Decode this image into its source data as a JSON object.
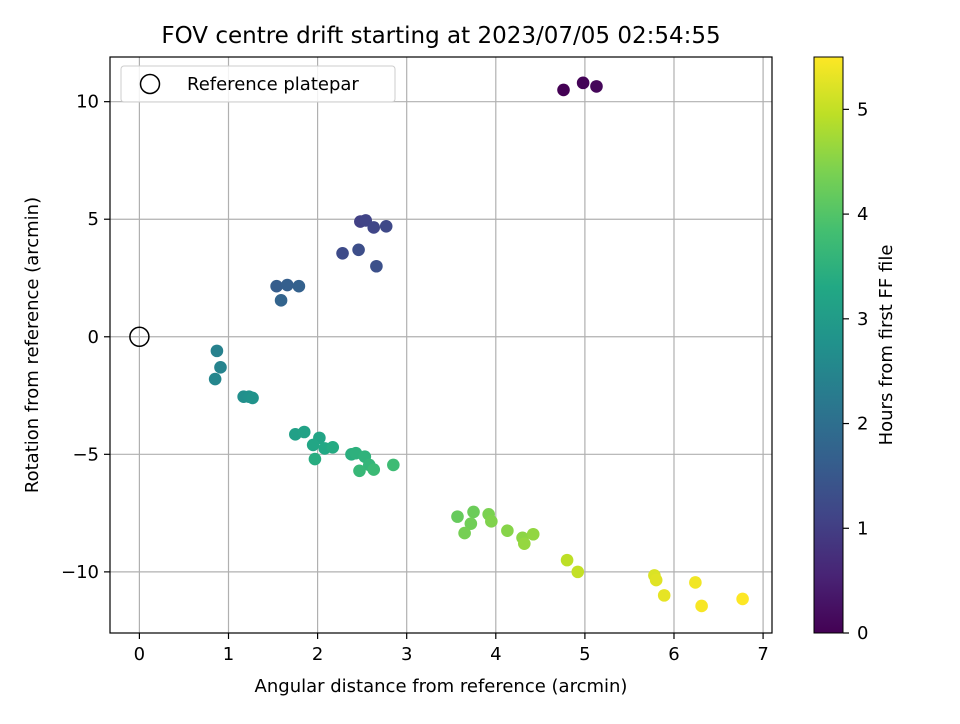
{
  "chart_data": {
    "type": "scatter",
    "title": "FOV centre drift starting at 2023/07/05 02:54:55",
    "xlabel": "Angular distance from reference (arcmin)",
    "ylabel": "Rotation from reference (arcmin)",
    "xlim": [
      -0.33,
      7.1
    ],
    "ylim": [
      -12.6,
      11.9
    ],
    "xticks": [
      0,
      1,
      2,
      3,
      4,
      5,
      6,
      7
    ],
    "yticks": [
      -10,
      -5,
      0,
      5,
      10
    ],
    "grid": true,
    "legend": {
      "placement": "top-left",
      "entries": [
        "Reference platepar"
      ]
    },
    "reference_point": {
      "x": 0,
      "y": 0,
      "label": "Reference platepar"
    },
    "colorbar": {
      "label": "Hours from first FF file",
      "range": [
        0,
        5.5
      ],
      "ticks": [
        0,
        1,
        2,
        3,
        4,
        5
      ],
      "colormap": "viridis"
    },
    "points": [
      {
        "x": 4.76,
        "y": 10.5,
        "h": 0.0
      },
      {
        "x": 4.98,
        "y": 10.8,
        "h": 0.05
      },
      {
        "x": 5.13,
        "y": 10.65,
        "h": 0.1
      },
      {
        "x": 2.48,
        "y": 4.9,
        "h": 1.05
      },
      {
        "x": 2.54,
        "y": 4.95,
        "h": 1.1
      },
      {
        "x": 2.63,
        "y": 4.65,
        "h": 1.15
      },
      {
        "x": 2.77,
        "y": 4.7,
        "h": 1.2
      },
      {
        "x": 2.28,
        "y": 3.55,
        "h": 1.25
      },
      {
        "x": 2.46,
        "y": 3.7,
        "h": 1.3
      },
      {
        "x": 2.66,
        "y": 3.0,
        "h": 1.35
      },
      {
        "x": 1.54,
        "y": 2.15,
        "h": 1.6
      },
      {
        "x": 1.66,
        "y": 2.2,
        "h": 1.65
      },
      {
        "x": 1.79,
        "y": 2.15,
        "h": 1.7
      },
      {
        "x": 1.59,
        "y": 1.55,
        "h": 1.75
      },
      {
        "x": 0.87,
        "y": -0.6,
        "h": 2.4
      },
      {
        "x": 0.91,
        "y": -1.3,
        "h": 2.45
      },
      {
        "x": 0.85,
        "y": -1.8,
        "h": 2.5
      },
      {
        "x": 1.17,
        "y": -2.55,
        "h": 2.7
      },
      {
        "x": 1.23,
        "y": -2.55,
        "h": 2.75
      },
      {
        "x": 1.27,
        "y": -2.6,
        "h": 2.8
      },
      {
        "x": 1.75,
        "y": -4.15,
        "h": 3.1
      },
      {
        "x": 1.85,
        "y": -4.05,
        "h": 3.15
      },
      {
        "x": 2.02,
        "y": -4.3,
        "h": 3.2
      },
      {
        "x": 1.95,
        "y": -4.6,
        "h": 3.25
      },
      {
        "x": 2.08,
        "y": -4.75,
        "h": 3.3
      },
      {
        "x": 2.17,
        "y": -4.7,
        "h": 3.35
      },
      {
        "x": 1.97,
        "y": -5.2,
        "h": 3.4
      },
      {
        "x": 2.38,
        "y": -5.0,
        "h": 3.45
      },
      {
        "x": 2.43,
        "y": -4.95,
        "h": 3.5
      },
      {
        "x": 2.53,
        "y": -5.1,
        "h": 3.55
      },
      {
        "x": 2.58,
        "y": -5.45,
        "h": 3.6
      },
      {
        "x": 2.47,
        "y": -5.7,
        "h": 3.65
      },
      {
        "x": 2.63,
        "y": -5.65,
        "h": 3.7
      },
      {
        "x": 2.85,
        "y": -5.45,
        "h": 3.75
      },
      {
        "x": 3.57,
        "y": -7.65,
        "h": 4.2
      },
      {
        "x": 3.75,
        "y": -7.45,
        "h": 4.25
      },
      {
        "x": 3.72,
        "y": -7.95,
        "h": 4.3
      },
      {
        "x": 3.65,
        "y": -8.35,
        "h": 4.35
      },
      {
        "x": 3.92,
        "y": -7.55,
        "h": 4.4
      },
      {
        "x": 3.95,
        "y": -7.85,
        "h": 4.45
      },
      {
        "x": 4.13,
        "y": -8.25,
        "h": 4.5
      },
      {
        "x": 4.3,
        "y": -8.55,
        "h": 4.55
      },
      {
        "x": 4.42,
        "y": -8.4,
        "h": 4.6
      },
      {
        "x": 4.32,
        "y": -8.8,
        "h": 4.62
      },
      {
        "x": 4.8,
        "y": -9.5,
        "h": 4.95
      },
      {
        "x": 4.92,
        "y": -10.0,
        "h": 5.0
      },
      {
        "x": 5.78,
        "y": -10.15,
        "h": 5.2
      },
      {
        "x": 5.8,
        "y": -10.35,
        "h": 5.25
      },
      {
        "x": 5.89,
        "y": -11.0,
        "h": 5.3
      },
      {
        "x": 6.24,
        "y": -10.45,
        "h": 5.4
      },
      {
        "x": 6.31,
        "y": -11.45,
        "h": 5.45
      },
      {
        "x": 6.77,
        "y": -11.15,
        "h": 5.5
      }
    ]
  }
}
